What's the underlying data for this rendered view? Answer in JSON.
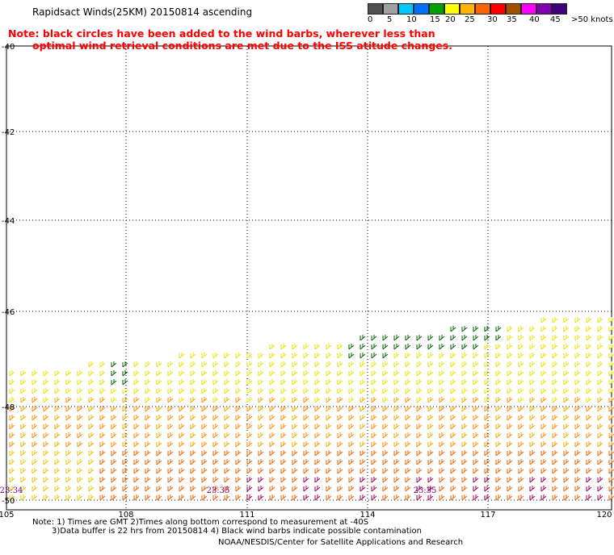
{
  "header": {
    "title": "Rapidsact Winds(25KM) 20150814 ascending",
    "note_line1": "Note: black circles have been added to the wind barbs, wherever less than",
    "note_line2": "optimal wind retrieval conditions are met due to the ISS atitude changes."
  },
  "legend": {
    "labels": [
      "0",
      "5",
      "10",
      "15",
      "20",
      "25",
      "30",
      "35",
      "40",
      "45",
      ">50 knots"
    ],
    "colors": [
      "#505050",
      "#a0a0a0",
      "#00c8ff",
      "#0070ff",
      "#00a000",
      "#ffff00",
      "#ffb400",
      "#ff6400",
      "#ff0000",
      "#a05000",
      "#ff00ff",
      "#8000b0",
      "#400080"
    ]
  },
  "map": {
    "lat_labels": [
      "-40",
      "-42",
      "-44",
      "-46",
      "-48",
      "-50"
    ],
    "lon_labels": [
      "105",
      "108",
      "111",
      "114",
      "117",
      "120"
    ],
    "time_labels": [
      "23:34",
      "23:35",
      "23:35"
    ],
    "time_color": "#800080"
  },
  "footer": {
    "line1": "Note: 1) Times are GMT 2)Times along bottom correspond to measurement at -40S",
    "line2": "3)Data buffer is 22 hrs from 20150814 4) Black wind barbs indicate possible contamination",
    "credit": "NOAA/NESDIS/Center for Satellite Applications and Research"
  }
}
